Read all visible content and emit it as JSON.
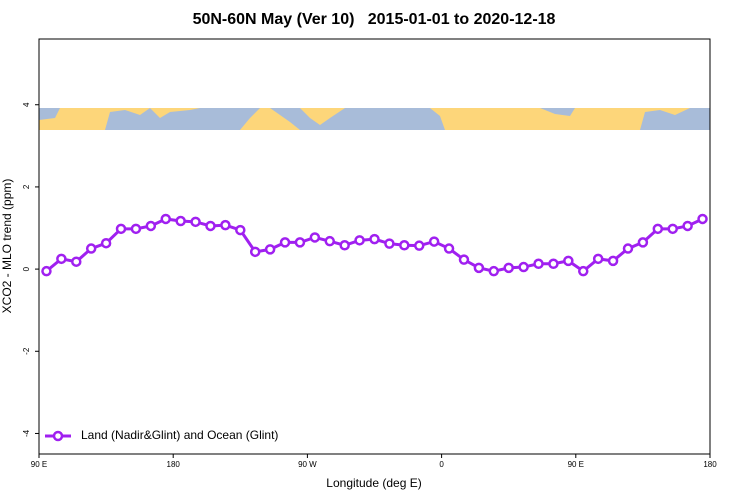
{
  "chart_data": {
    "type": "line",
    "title": "50N-60N May (Ver 10)   2015-01-01 to 2020-12-18",
    "x_label": "Longitude (deg E)",
    "y_label": "XCO2 - MLO trend (ppm)",
    "xlim": [
      90,
      540
    ],
    "xticks": [
      {
        "value": 90,
        "label": "90 E"
      },
      180,
      {
        "value": 270,
        "label": "90 W"
      },
      {
        "value": 360,
        "label": "0"
      },
      {
        "value": 450,
        "label": "90 E"
      },
      {
        "value": 540,
        "label": "180"
      }
    ],
    "ylim": [
      -4.5,
      5.6
    ],
    "yticks": [
      -4,
      -2,
      0,
      2,
      4
    ],
    "legend": "bottom-left",
    "x": [
      95,
      105,
      115,
      125,
      135,
      145,
      155,
      165,
      175,
      185,
      195,
      205,
      215,
      225,
      235,
      245,
      255,
      265,
      275,
      285,
      295,
      305,
      315,
      325,
      335,
      345,
      355,
      365,
      375,
      385,
      395,
      405,
      415,
      425,
      435,
      445,
      455,
      465,
      475,
      485,
      495,
      505,
      515,
      525,
      535
    ],
    "series": [
      {
        "name": "Land (Nadir&Glint) and Ocean (Glint)",
        "color": "#a020f0",
        "values": [
          -0.05,
          0.25,
          0.18,
          0.5,
          0.63,
          0.98,
          0.98,
          1.05,
          1.22,
          1.17,
          1.15,
          1.05,
          1.07,
          0.95,
          0.42,
          0.48,
          0.65,
          0.65,
          0.77,
          0.68,
          0.58,
          0.7,
          0.73,
          0.62,
          0.58,
          0.57,
          0.67,
          0.5,
          0.23,
          0.03,
          -0.05,
          0.03,
          0.05,
          0.13,
          0.13,
          0.2,
          -0.05,
          0.25,
          0.2,
          0.5,
          0.65,
          0.98,
          0.98,
          1.05,
          1.22
        ]
      }
    ]
  }
}
